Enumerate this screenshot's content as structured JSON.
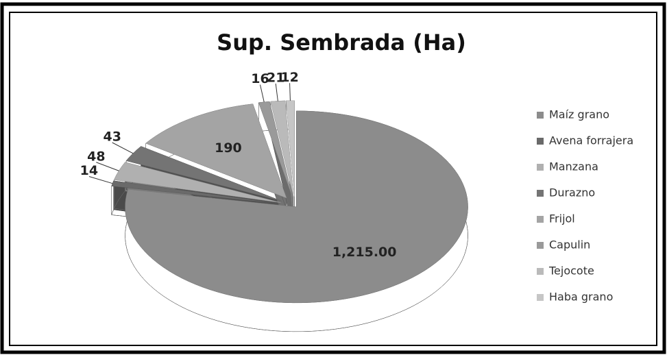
{
  "chart_data": {
    "type": "pie",
    "title": "Sup. Sembrada (Ha)",
    "categories": [
      "Maíz grano",
      "Avena forrajera",
      "Manzana",
      "Durazno",
      "Frijol",
      "Capulin",
      "Tejocote",
      "Haba grano"
    ],
    "values": [
      1215,
      14,
      48,
      43,
      190,
      16,
      21,
      12
    ],
    "value_labels": [
      "1,215.00",
      "14",
      "48",
      "43",
      "190",
      "16",
      "21",
      "12"
    ],
    "colors": [
      "#8c8c8c",
      "#6a6a6a",
      "#b0b0b0",
      "#747474",
      "#a4a4a4",
      "#9a9a9a",
      "#bababa",
      "#c6c6c6"
    ],
    "legend": "right"
  }
}
